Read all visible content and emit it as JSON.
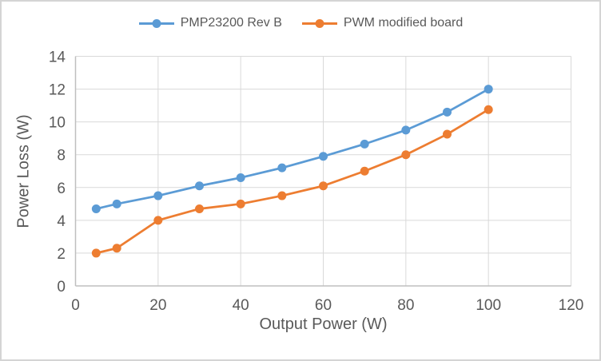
{
  "chart_data": {
    "type": "line",
    "title": "",
    "xlabel": "Output Power (W)",
    "ylabel": "Power Loss (W)",
    "x": [
      5,
      10,
      20,
      30,
      40,
      50,
      60,
      70,
      80,
      90,
      100
    ],
    "series": [
      {
        "name": "PMP23200 Rev B",
        "color": "#5B9BD5",
        "marker": "circle",
        "values": [
          4.7,
          5.0,
          5.5,
          6.1,
          6.6,
          7.2,
          7.9,
          8.65,
          9.5,
          10.6,
          12.0
        ]
      },
      {
        "name": "PWM modified board",
        "color": "#ED7D31",
        "marker": "circle",
        "values": [
          2.0,
          2.3,
          4.0,
          4.7,
          5.0,
          5.5,
          6.1,
          7.0,
          8.0,
          9.25,
          10.75
        ]
      }
    ],
    "xlim": [
      0,
      120
    ],
    "ylim": [
      0,
      14
    ],
    "xticks": [
      0,
      20,
      40,
      60,
      80,
      100,
      120
    ],
    "yticks": [
      0,
      2,
      4,
      6,
      8,
      10,
      12,
      14
    ],
    "grid": true,
    "legend_position": "top",
    "gridline_color": "#D9D9D9",
    "axis_line_color": "#BFBFBF",
    "tick_label_color": "#595959",
    "text_color": "#595959",
    "frame_border_color": "#D4D4D4",
    "background_color": "#FFFFFF"
  }
}
